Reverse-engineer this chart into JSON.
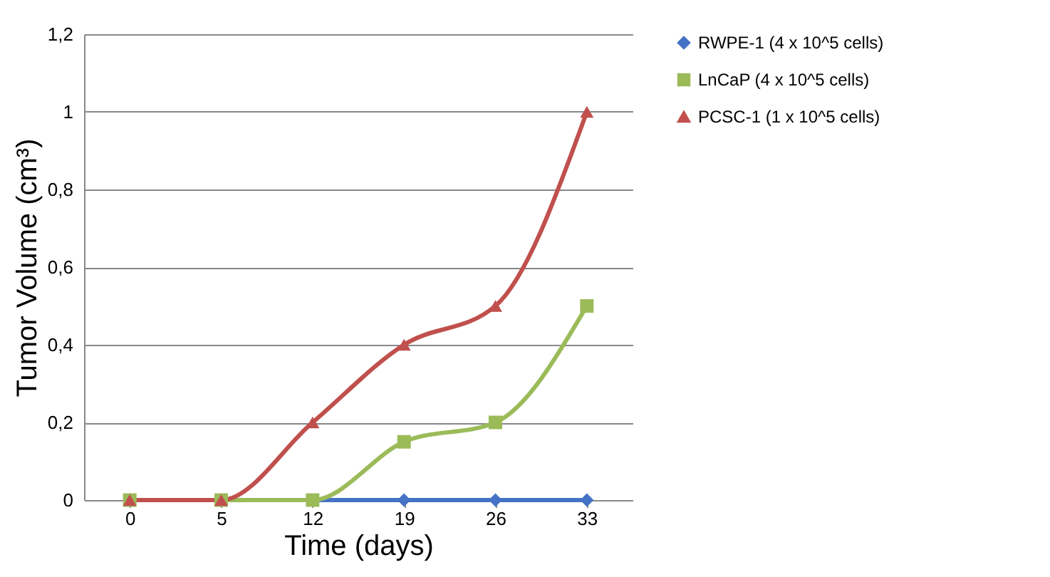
{
  "chart_data": {
    "type": "line",
    "xlabel": "Time (days)",
    "ylabel": "Tumor Volume (cm³)",
    "categories": [
      "0",
      "5",
      "12",
      "19",
      "26",
      "33"
    ],
    "series": [
      {
        "name": "RWPE-1 (4 x 10^5 cells)",
        "color": "#4472c4",
        "marker": "diamond",
        "values": [
          0,
          0,
          0,
          0,
          0,
          0
        ]
      },
      {
        "name": "LnCaP (4 x 10^5 cells)",
        "color": "#9bbb59",
        "marker": "square",
        "values": [
          0,
          0,
          0,
          0.15,
          0.2,
          0.5
        ]
      },
      {
        "name": "PCSC-1 (1 x 10^5 cells)",
        "color": "#c0504d",
        "marker": "triangle",
        "values": [
          0,
          0,
          0.2,
          0.4,
          0.5,
          1.0
        ]
      }
    ],
    "ylim": [
      0,
      1.2
    ],
    "yticks": [
      {
        "value": 0,
        "label": "0"
      },
      {
        "value": 0.2,
        "label": "0,2"
      },
      {
        "value": 0.4,
        "label": "0,4"
      },
      {
        "value": 0.6,
        "label": "0,6"
      },
      {
        "value": 0.8,
        "label": "0,8"
      },
      {
        "value": 1,
        "label": "1"
      },
      {
        "value": 1.2,
        "label": "1,2"
      }
    ],
    "grid": "y",
    "legend": "right",
    "line_style": "solid"
  }
}
